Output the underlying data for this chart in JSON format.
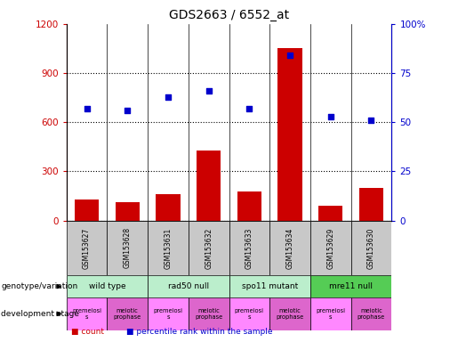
{
  "title": "GDS2663 / 6552_at",
  "samples": [
    "GSM153627",
    "GSM153628",
    "GSM153631",
    "GSM153632",
    "GSM153633",
    "GSM153634",
    "GSM153629",
    "GSM153630"
  ],
  "counts": [
    130,
    110,
    160,
    430,
    175,
    1050,
    90,
    200
  ],
  "percentiles": [
    57,
    56,
    63,
    66,
    57,
    84,
    53,
    51
  ],
  "ylim_left": [
    0,
    1200
  ],
  "ylim_right": [
    0,
    100
  ],
  "yticks_left": [
    0,
    300,
    600,
    900,
    1200
  ],
  "yticks_right": [
    0,
    25,
    50,
    75,
    100
  ],
  "ytick_labels_left": [
    "0",
    "300",
    "600",
    "900",
    "1200"
  ],
  "ytick_labels_right": [
    "0",
    "25",
    "50",
    "75",
    "100%"
  ],
  "bar_color": "#cc0000",
  "dot_color": "#0000cc",
  "genotype_groups": [
    {
      "label": "wild type",
      "start": 0,
      "end": 2,
      "color": "#bbeecc"
    },
    {
      "label": "rad50 null",
      "start": 2,
      "end": 4,
      "color": "#bbeecc"
    },
    {
      "label": "spo11 mutant",
      "start": 4,
      "end": 6,
      "color": "#bbeecc"
    },
    {
      "label": "mre11 null",
      "start": 6,
      "end": 8,
      "color": "#55cc55"
    }
  ],
  "dev_stage_groups": [
    {
      "label": "premeiosi\ns",
      "start": 0,
      "end": 1,
      "color": "#ff88ff"
    },
    {
      "label": "meiotic\nprophase",
      "start": 1,
      "end": 2,
      "color": "#dd66cc"
    },
    {
      "label": "premeiosi\ns",
      "start": 2,
      "end": 3,
      "color": "#ff88ff"
    },
    {
      "label": "meiotic\nprophase",
      "start": 3,
      "end": 4,
      "color": "#dd66cc"
    },
    {
      "label": "premeiosi\ns",
      "start": 4,
      "end": 5,
      "color": "#ff88ff"
    },
    {
      "label": "meiotic\nprophase",
      "start": 5,
      "end": 6,
      "color": "#dd66cc"
    },
    {
      "label": "premeiosi\ns",
      "start": 6,
      "end": 7,
      "color": "#ff88ff"
    },
    {
      "label": "meiotic\nprophase",
      "start": 7,
      "end": 8,
      "color": "#dd66cc"
    }
  ],
  "sample_bg_color": "#c8c8c8",
  "label_genotype": "genotype/variation",
  "label_devstage": "development stage",
  "legend_count": "count",
  "legend_percentile": "percentile rank within the sample",
  "left_axis_color": "#cc0000",
  "right_axis_color": "#0000cc",
  "grid_color": "#000000"
}
